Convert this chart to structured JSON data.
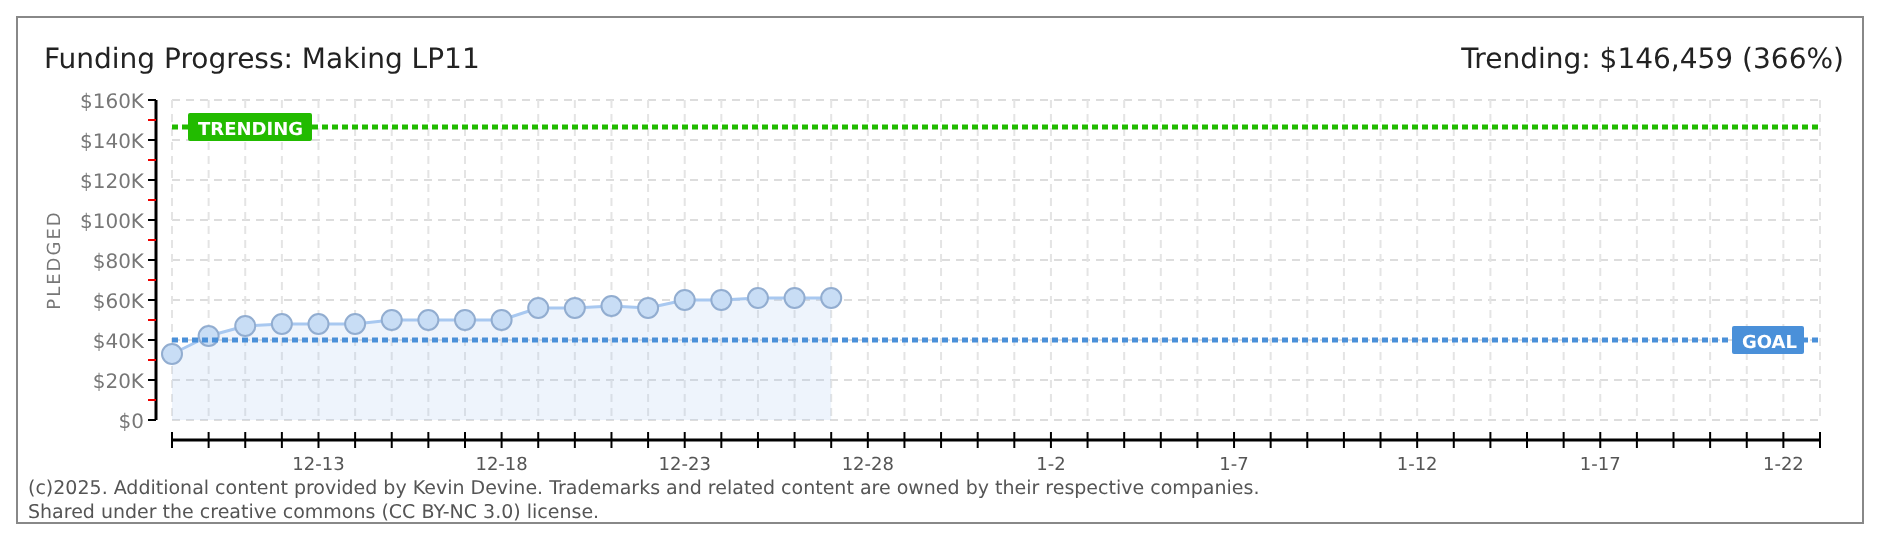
{
  "chart_data": {
    "type": "area",
    "title": "Funding Progress: Making LP11",
    "subtitle": "Trending: $146,459 (366%)",
    "ylabel": "PLEDGED",
    "x": [
      "2025-12-09",
      "2025-12-10",
      "2025-12-11",
      "2025-12-12",
      "2025-12-13",
      "2025-12-14",
      "2025-12-15",
      "2025-12-16",
      "2025-12-17",
      "2025-12-18",
      "2025-12-19",
      "2025-12-20",
      "2025-12-21",
      "2025-12-22",
      "2025-12-23",
      "2025-12-24",
      "2025-12-25",
      "2025-12-26",
      "2025-12-27"
    ],
    "series": [
      {
        "color": "#a8c8f0",
        "values": [
          33,
          42,
          47,
          48,
          48,
          48,
          50,
          50,
          50,
          50,
          56,
          56,
          57,
          56,
          60,
          60,
          61,
          61,
          61
        ]
      }
    ],
    "marker": "circle",
    "grid": true,
    "xlim": [
      "2025-12-09",
      "2026-01-23"
    ],
    "xticks": [
      {
        "value": "2025-12-09",
        "label": null
      },
      {
        "value": "2025-12-10",
        "label": null
      },
      {
        "value": "2025-12-11",
        "label": null
      },
      {
        "value": "2025-12-12",
        "label": null
      },
      {
        "value": "2025-12-13",
        "label": "12-13"
      },
      {
        "value": "2025-12-14",
        "label": null
      },
      {
        "value": "2025-12-15",
        "label": null
      },
      {
        "value": "2025-12-16",
        "label": null
      },
      {
        "value": "2025-12-17",
        "label": null
      },
      {
        "value": "2025-12-18",
        "label": "12-18"
      },
      {
        "value": "2025-12-19",
        "label": null
      },
      {
        "value": "2025-12-20",
        "label": null
      },
      {
        "value": "2025-12-21",
        "label": null
      },
      {
        "value": "2025-12-22",
        "label": null
      },
      {
        "value": "2025-12-23",
        "label": "12-23"
      },
      {
        "value": "2025-12-24",
        "label": null
      },
      {
        "value": "2025-12-25",
        "label": null
      },
      {
        "value": "2025-12-26",
        "label": null
      },
      {
        "value": "2025-12-27",
        "label": null
      },
      {
        "value": "2025-12-28",
        "label": "12-28"
      },
      {
        "value": "2025-12-29",
        "label": null
      },
      {
        "value": "2025-12-30",
        "label": null
      },
      {
        "value": "2025-12-31",
        "label": null
      },
      {
        "value": "2026-01-01",
        "label": null
      },
      {
        "value": "2026-01-02",
        "label": "1-2"
      },
      {
        "value": "2026-01-03",
        "label": null
      },
      {
        "value": "2026-01-04",
        "label": null
      },
      {
        "value": "2026-01-05",
        "label": null
      },
      {
        "value": "2026-01-06",
        "label": null
      },
      {
        "value": "2026-01-07",
        "label": "1-7"
      },
      {
        "value": "2026-01-08",
        "label": null
      },
      {
        "value": "2026-01-09",
        "label": null
      },
      {
        "value": "2026-01-10",
        "label": null
      },
      {
        "value": "2026-01-11",
        "label": null
      },
      {
        "value": "2026-01-12",
        "label": "1-12"
      },
      {
        "value": "2026-01-13",
        "label": null
      },
      {
        "value": "2026-01-14",
        "label": null
      },
      {
        "value": "2026-01-15",
        "label": null
      },
      {
        "value": "2026-01-16",
        "label": null
      },
      {
        "value": "2026-01-17",
        "label": "1-17"
      },
      {
        "value": "2026-01-18",
        "label": null
      },
      {
        "value": "2026-01-19",
        "label": null
      },
      {
        "value": "2026-01-20",
        "label": null
      },
      {
        "value": "2026-01-21",
        "label": null
      },
      {
        "value": "2026-01-22",
        "label": "1-22"
      },
      {
        "value": "2026-01-23",
        "label": null
      }
    ],
    "ylim": [
      0,
      160
    ],
    "yticks": [
      {
        "value": 0,
        "label": "$0"
      },
      {
        "value": 10,
        "label": null
      },
      {
        "value": 20,
        "label": "$20K"
      },
      {
        "value": 30,
        "label": null
      },
      {
        "value": 40,
        "label": "$40K"
      },
      {
        "value": 50,
        "label": null
      },
      {
        "value": 60,
        "label": "$60K"
      },
      {
        "value": 70,
        "label": null
      },
      {
        "value": 80,
        "label": "$80K"
      },
      {
        "value": 90,
        "label": null
      },
      {
        "value": 100,
        "label": "$100K"
      },
      {
        "value": 110,
        "label": null
      },
      {
        "value": 120,
        "label": "$120K"
      },
      {
        "value": 130,
        "label": null
      },
      {
        "value": 140,
        "label": "$140K"
      },
      {
        "value": 150,
        "label": null
      },
      {
        "value": 160,
        "label": "$160K"
      }
    ],
    "ref_lines": [
      {
        "axis": "y",
        "value": 146.459,
        "label": "TRENDING",
        "color": "#22bb00",
        "line_style": "dotted"
      },
      {
        "axis": "y",
        "value": 40,
        "label": "GOAL",
        "color": "#4a90d9",
        "line_style": "dotted"
      }
    ],
    "annotations": [
      "(c)2025. Additional content provided by Kevin Devine. Trademarks and related content are owned by their respective companies.",
      "Shared under the creative commons (CC BY-NC 3.0) license."
    ]
  }
}
